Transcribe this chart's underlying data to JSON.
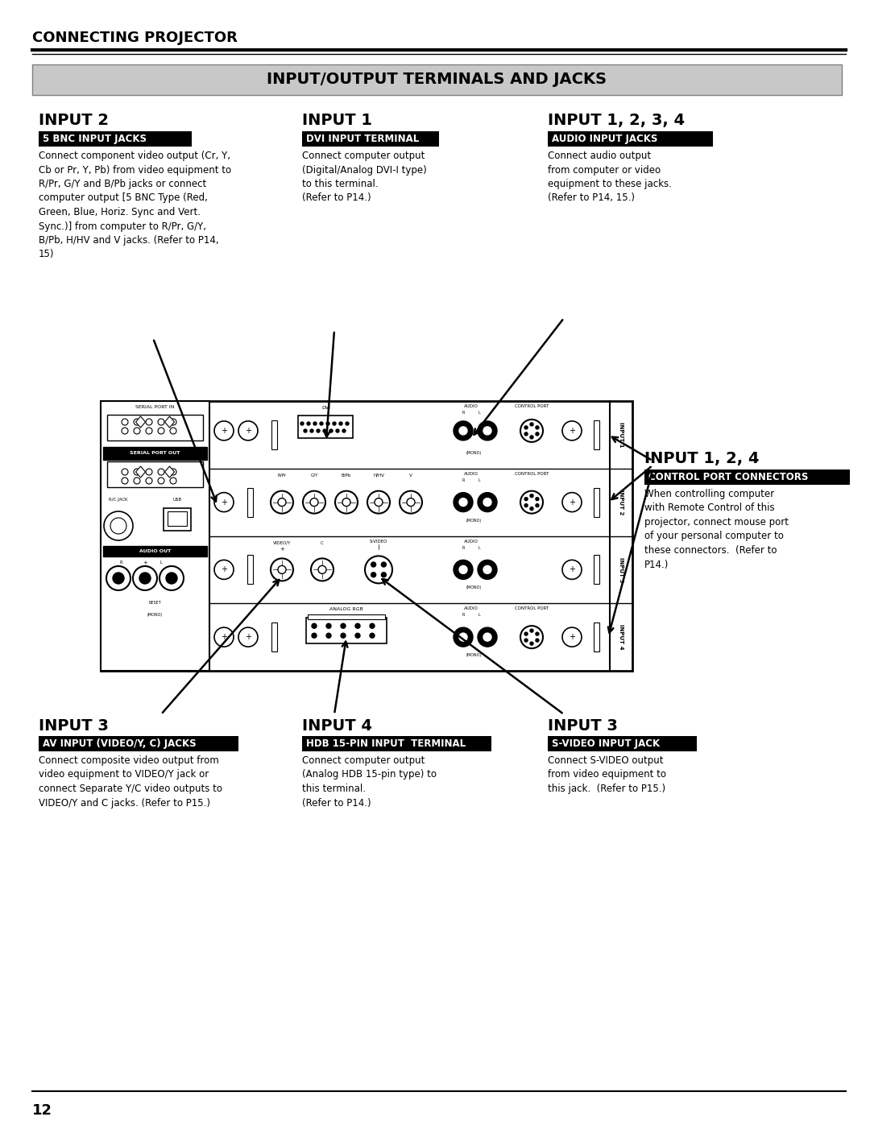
{
  "page_bg": "#ffffff",
  "title_header": "CONNECTING PROJECTOR",
  "section_banner": "INPUT/OUTPUT TERMINALS AND JACKS",
  "section_banner_bg": "#c8c8c8",
  "input2_title": "INPUT 2",
  "input2_badge": "5 BNC INPUT JACKS",
  "input2_text": "Connect component video output (Cr, Y,\nCb or Pr, Y, Pb) from video equipment to\nR/Pr, G/Y and B/Pb jacks or connect\ncomputer output [5 BNC Type (Red,\nGreen, Blue, Horiz. Sync and Vert.\nSync.)] from computer to R/Pr, G/Y,\nB/Pb, H/HV and V jacks. (Refer to P14,\n15)",
  "input1_title": "INPUT 1",
  "input1_badge": "DVI INPUT TERMINAL",
  "input1_text": "Connect computer output\n(Digital/Analog DVI-I type)\nto this terminal.\n(Refer to P14.)",
  "input1234_title": "INPUT 1, 2, 3, 4",
  "input1234_badge": "AUDIO INPUT JACKS",
  "input1234_text": "Connect audio output\nfrom computer or video\nequipment to these jacks.\n(Refer to P14, 15.)",
  "input124_title": "INPUT 1, 2, 4",
  "input124_badge": "CONTROL PORT CONNECTORS",
  "input124_text": "When controlling computer\nwith Remote Control of this\nprojector, connect mouse port\nof your personal computer to\nthese connectors.  (Refer to\nP14.)",
  "input3_left_title": "INPUT 3",
  "input3_left_badge": "AV INPUT (VIDEO/Y, C) JACKS",
  "input3_left_text": "Connect composite video output from\nvideo equipment to VIDEO/Y jack or\nconnect Separate Y/C video outputs to\nVIDEO/Y and C jacks. (Refer to P15.)",
  "input4_title": "INPUT 4",
  "input4_badge": "HDB 15-PIN INPUT  TERMINAL",
  "input4_text": "Connect computer output\n(Analog HDB 15-pin type) to\nthis terminal.\n(Refer to P14.)",
  "input3_right_title": "INPUT 3",
  "input3_right_badge": "S-VIDEO INPUT JACK",
  "input3_right_text": "Connect S-VIDEO output\nfrom video equipment to\nthis jack.  (Refer to P15.)",
  "page_number": "12"
}
